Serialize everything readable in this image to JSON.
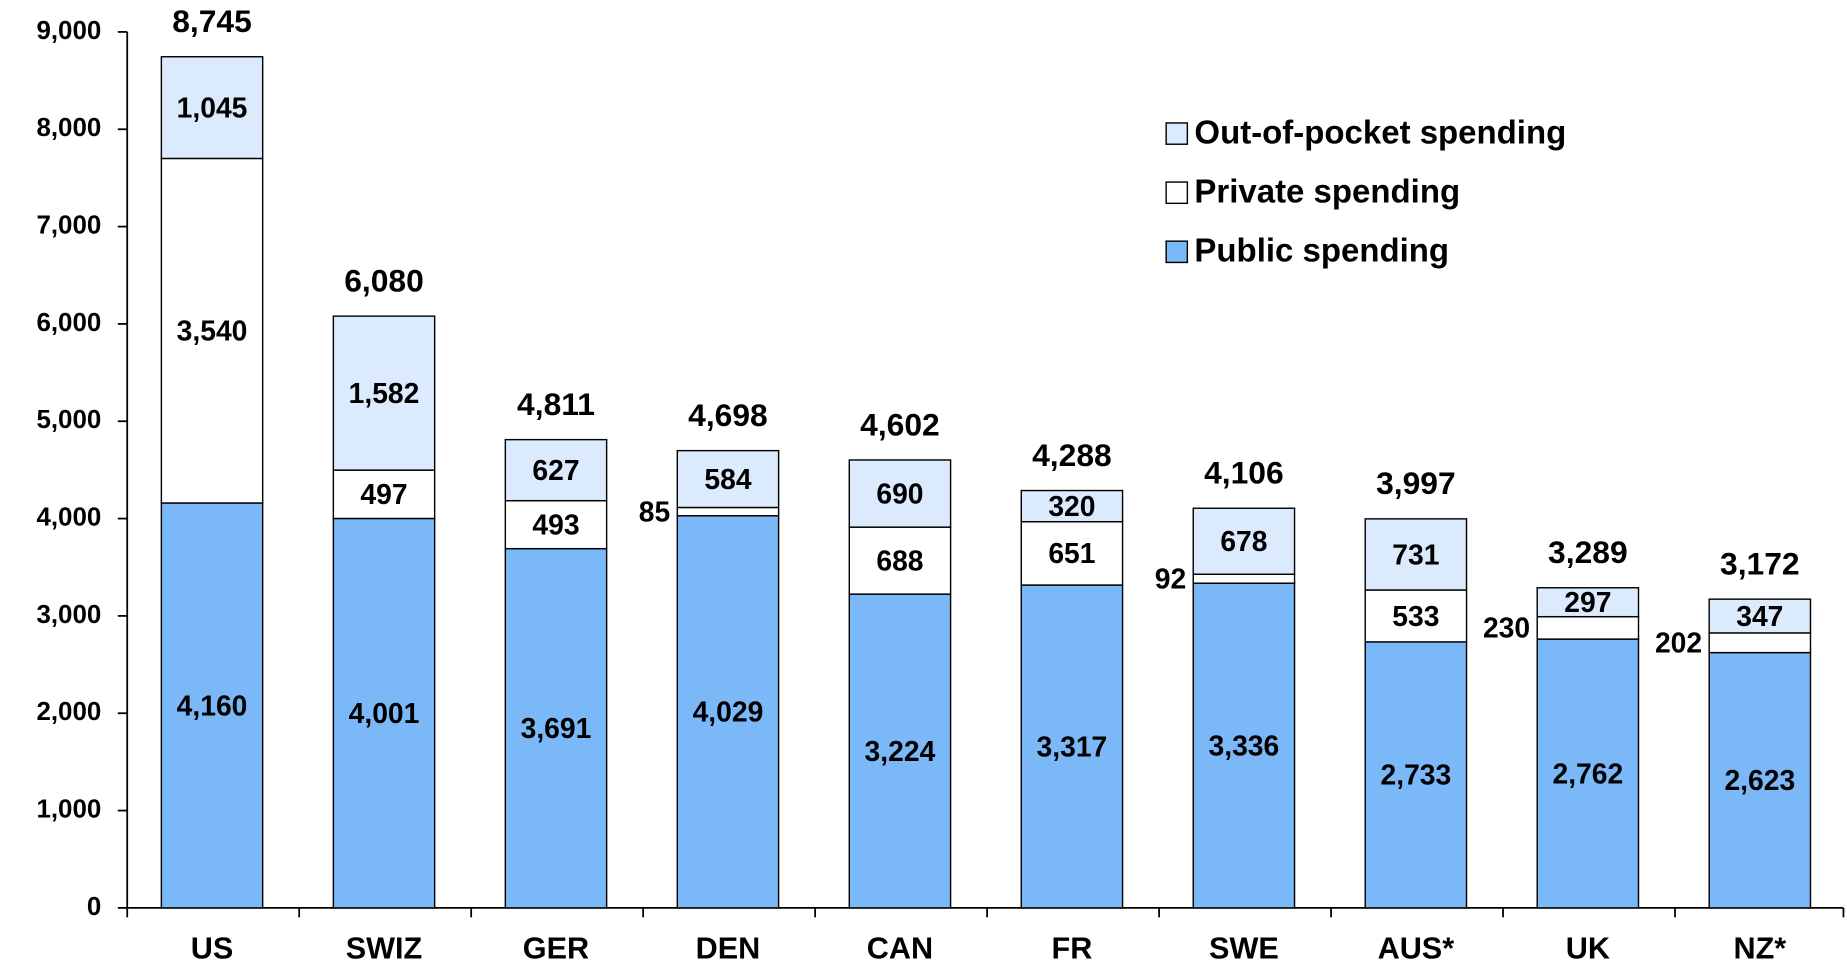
{
  "chart_data": {
    "type": "stacked_bar",
    "categories": [
      "US",
      "SWIZ",
      "GER",
      "DEN",
      "CAN",
      "FR",
      "SWE",
      "AUS*",
      "UK",
      "NZ*"
    ],
    "series": [
      {
        "name": "Public spending",
        "color": "#7ab8f8",
        "values": [
          4160,
          4001,
          3691,
          4029,
          3224,
          3317,
          3336,
          2733,
          2762,
          2623
        ],
        "value_labels": [
          "4,160",
          "4,001",
          "3,691",
          "4,029",
          "3,224",
          "3,317",
          "3,336",
          "2,733",
          "2,762",
          "2,623"
        ]
      },
      {
        "name": "Private spending",
        "color": "#ffffff",
        "values": [
          3540,
          497,
          493,
          85,
          688,
          651,
          92,
          533,
          230,
          202
        ],
        "value_labels": [
          "3,540",
          "497",
          "493",
          "85",
          "688",
          "651",
          "92",
          "533",
          "230",
          "202"
        ]
      },
      {
        "name": "Out-of-pocket spending",
        "color": "#dbeafc",
        "values": [
          1045,
          1582,
          627,
          584,
          690,
          320,
          678,
          731,
          297,
          347
        ],
        "value_labels": [
          "1,045",
          "1,582",
          "627",
          "584",
          "690",
          "320",
          "678",
          "731",
          "297",
          "347"
        ]
      }
    ],
    "totals": [
      8745,
      6080,
      4811,
      4698,
      4602,
      4288,
      4106,
      3997,
      3289,
      3172
    ],
    "total_labels": [
      "8,745",
      "6,080",
      "4,811",
      "4,698",
      "4,602",
      "4,288",
      "4,106",
      "3,997",
      "3,289",
      "3,172"
    ],
    "ylim": [
      0,
      9000
    ],
    "yticks": [
      0,
      {
        "value": 1000,
        "label": "1,000"
      },
      {
        "value": 2000,
        "label": "2,000"
      },
      {
        "value": 3000,
        "label": "3,000"
      },
      {
        "value": 4000,
        "label": "4,000"
      },
      {
        "value": 5000,
        "label": "5,000"
      },
      {
        "value": 6000,
        "label": "6,000"
      },
      {
        "value": 7000,
        "label": "7,000"
      },
      {
        "value": 8000,
        "label": "8,000"
      },
      {
        "value": 9000,
        "label": "9,000"
      }
    ]
  }
}
